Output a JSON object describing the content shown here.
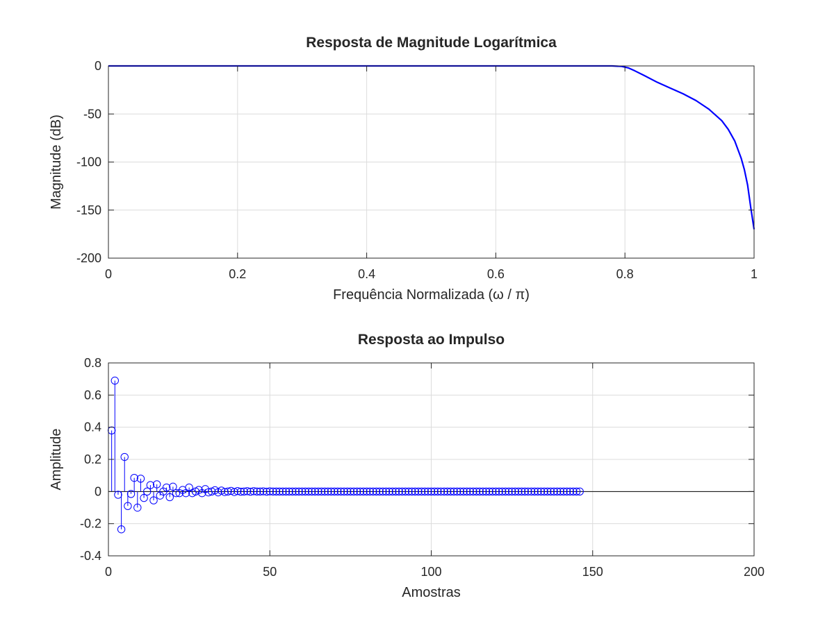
{
  "figure": {
    "background": "#ffffff",
    "axes_color": "#262626",
    "grid_color": "#dcdcdc",
    "line_color": "#0000ff"
  },
  "chart_data": [
    {
      "type": "line",
      "title": "Resposta de Magnitude Logarítmica",
      "xlabel": "Frequência Normalizada (ω / π)",
      "ylabel": "Magnitude (dB)",
      "xlim": [
        0,
        1
      ],
      "ylim": [
        -200,
        0
      ],
      "xticks": [
        0,
        0.2,
        0.4,
        0.6,
        0.8,
        1
      ],
      "xtick_labels": [
        "0",
        "0.2",
        "0.4",
        "0.6",
        "0.8",
        "1"
      ],
      "yticks": [
        -200,
        -150,
        -100,
        -50,
        0
      ],
      "ytick_labels": [
        "-200",
        "-150",
        "-100",
        "-50",
        "0"
      ],
      "grid": true,
      "series": [
        {
          "color": "#0000ff",
          "x": [
            0,
            0.1,
            0.2,
            0.3,
            0.4,
            0.5,
            0.6,
            0.7,
            0.75,
            0.78,
            0.795,
            0.805,
            0.815,
            0.83,
            0.85,
            0.87,
            0.89,
            0.91,
            0.93,
            0.95,
            0.96,
            0.97,
            0.98,
            0.985,
            0.99,
            0.995,
            1.0
          ],
          "y": [
            0,
            0,
            0,
            0,
            0,
            0,
            0,
            0,
            0,
            0,
            -0.5,
            -2,
            -5,
            -10,
            -17,
            -23,
            -29,
            -36,
            -45,
            -57,
            -66,
            -78,
            -96,
            -108,
            -124,
            -148,
            -170
          ]
        }
      ]
    },
    {
      "type": "stem",
      "title": "Resposta ao Impulso",
      "xlabel": "Amostras",
      "ylabel": "Amplitude",
      "xlim": [
        0,
        200
      ],
      "ylim": [
        -0.4,
        0.8
      ],
      "xticks": [
        0,
        50,
        100,
        150,
        200
      ],
      "xtick_labels": [
        "0",
        "50",
        "100",
        "150",
        "200"
      ],
      "yticks": [
        -0.4,
        -0.2,
        0,
        0.2,
        0.4,
        0.6,
        0.8
      ],
      "ytick_labels": [
        "-0.4",
        "-0.2",
        "0",
        "0.2",
        "0.4",
        "0.6",
        "0.8"
      ],
      "grid": true,
      "series": [
        {
          "color": "#0000ff",
          "x": [
            1,
            2,
            3,
            4,
            5,
            6,
            7,
            8,
            9,
            10,
            11,
            12,
            13,
            14,
            15,
            16,
            17,
            18,
            19,
            20,
            21,
            22,
            23,
            24,
            25,
            26,
            27,
            28,
            29,
            30,
            31,
            32,
            33,
            34,
            35,
            36,
            37,
            38,
            39,
            40,
            41,
            42,
            43,
            44,
            45,
            46,
            47,
            48,
            49,
            50,
            51,
            52,
            53,
            54,
            55,
            56,
            57,
            58,
            59,
            60,
            61,
            62,
            63,
            64,
            65,
            66,
            67,
            68,
            69,
            70,
            71,
            72,
            73,
            74,
            75,
            76,
            77,
            78,
            79,
            80,
            81,
            82,
            83,
            84,
            85,
            86,
            87,
            88,
            89,
            90,
            91,
            92,
            93,
            94,
            95,
            96,
            97,
            98,
            99,
            100,
            101,
            102,
            103,
            104,
            105,
            106,
            107,
            108,
            109,
            110,
            111,
            112,
            113,
            114,
            115,
            116,
            117,
            118,
            119,
            120,
            121,
            122,
            123,
            124,
            125,
            126,
            127,
            128,
            129,
            130,
            131,
            132,
            133,
            134,
            135,
            136,
            137,
            138,
            139,
            140,
            141,
            142,
            143,
            144,
            145,
            146
          ],
          "y": [
            0.38,
            0.69,
            -0.02,
            -0.235,
            0.215,
            -0.09,
            -0.015,
            0.085,
            -0.1,
            0.08,
            -0.04,
            0.0,
            0.04,
            -0.055,
            0.045,
            -0.025,
            0.0,
            0.025,
            -0.035,
            0.03,
            -0.01,
            -0.01,
            0.01,
            -0.01,
            0.025,
            -0.01,
            0.0,
            0.01,
            -0.01,
            0.015,
            -0.005,
            0.0,
            0.008,
            -0.005,
            0.006,
            -0.003,
            0.0,
            0.004,
            -0.003,
            0.003,
            -0.001,
            0.0,
            0.002,
            -0.001,
            0.002,
            0.0,
            0.0,
            0.001,
            -0.001,
            0.001,
            0,
            0,
            0,
            0,
            0,
            0,
            0,
            0,
            0,
            0,
            0,
            0,
            0,
            0,
            0,
            0,
            0,
            0,
            0,
            0,
            0,
            0,
            0,
            0,
            0,
            0,
            0,
            0,
            0,
            0,
            0,
            0,
            0,
            0,
            0,
            0,
            0,
            0,
            0,
            0,
            0,
            0,
            0,
            0,
            0,
            0,
            0,
            0,
            0,
            0,
            0,
            0,
            0,
            0,
            0,
            0,
            0,
            0,
            0,
            0,
            0,
            0,
            0,
            0,
            0,
            0,
            0,
            0,
            0,
            0,
            0,
            0,
            0,
            0,
            0,
            0,
            0,
            0,
            0,
            0,
            0,
            0,
            0,
            0,
            0,
            0,
            0,
            0,
            0,
            0,
            0,
            0,
            0,
            0,
            0,
            0
          ]
        }
      ]
    }
  ]
}
